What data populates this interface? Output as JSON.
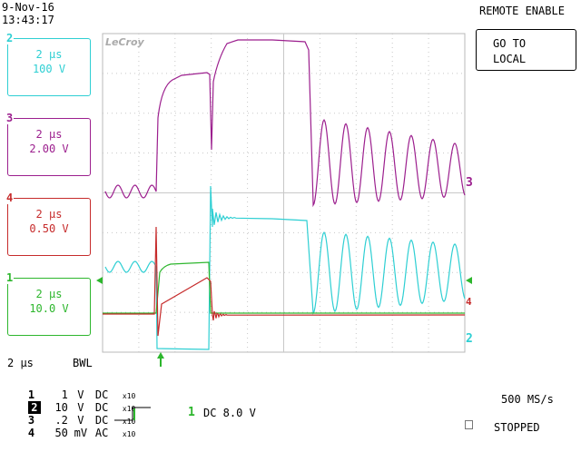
{
  "header": {
    "date": "9-Nov-16",
    "time": "13:43:17",
    "remote_status": "REMOTE ENABLE"
  },
  "button": {
    "line1": "GO TO",
    "line2": "LOCAL"
  },
  "brand": "LeCroy",
  "channels": [
    {
      "num": "2",
      "timebase": "2 µs",
      "scale": "100 V",
      "color": "#2ecfd3"
    },
    {
      "num": "3",
      "timebase": "2 µs",
      "scale": "2.00 V",
      "color": "#9c1f8e"
    },
    {
      "num": "4",
      "timebase": "2 µs",
      "scale": "0.50 V",
      "color": "#c62b2b"
    },
    {
      "num": "1",
      "timebase": "2 µs",
      "scale": "10.0 V",
      "color": "#2db62d"
    }
  ],
  "summary": {
    "timebase": "2 µs",
    "bwl": "BWL",
    "rows": [
      {
        "num": "1",
        "volts": "1",
        "unit": "V",
        "coupling": "DC",
        "probe": "x10"
      },
      {
        "num": "2",
        "volts": "10",
        "unit": "V",
        "coupling": "DC",
        "probe": "x10"
      },
      {
        "num": "3",
        "volts": ".2",
        "unit": "V",
        "coupling": "DC",
        "probe": "x10"
      },
      {
        "num": "4",
        "volts": "50",
        "unit": "mV",
        "coupling": "AC",
        "probe": "x10"
      }
    ]
  },
  "trigger": {
    "channel": "1",
    "coupling_level": "DC 8.0 V",
    "color": "#2db62d"
  },
  "acquisition": {
    "sample_rate": "500 MS/s",
    "status": "STOPPED"
  },
  "trace_labels": {
    "ch3": "3",
    "ch2": "2",
    "ch4": "4"
  }
}
